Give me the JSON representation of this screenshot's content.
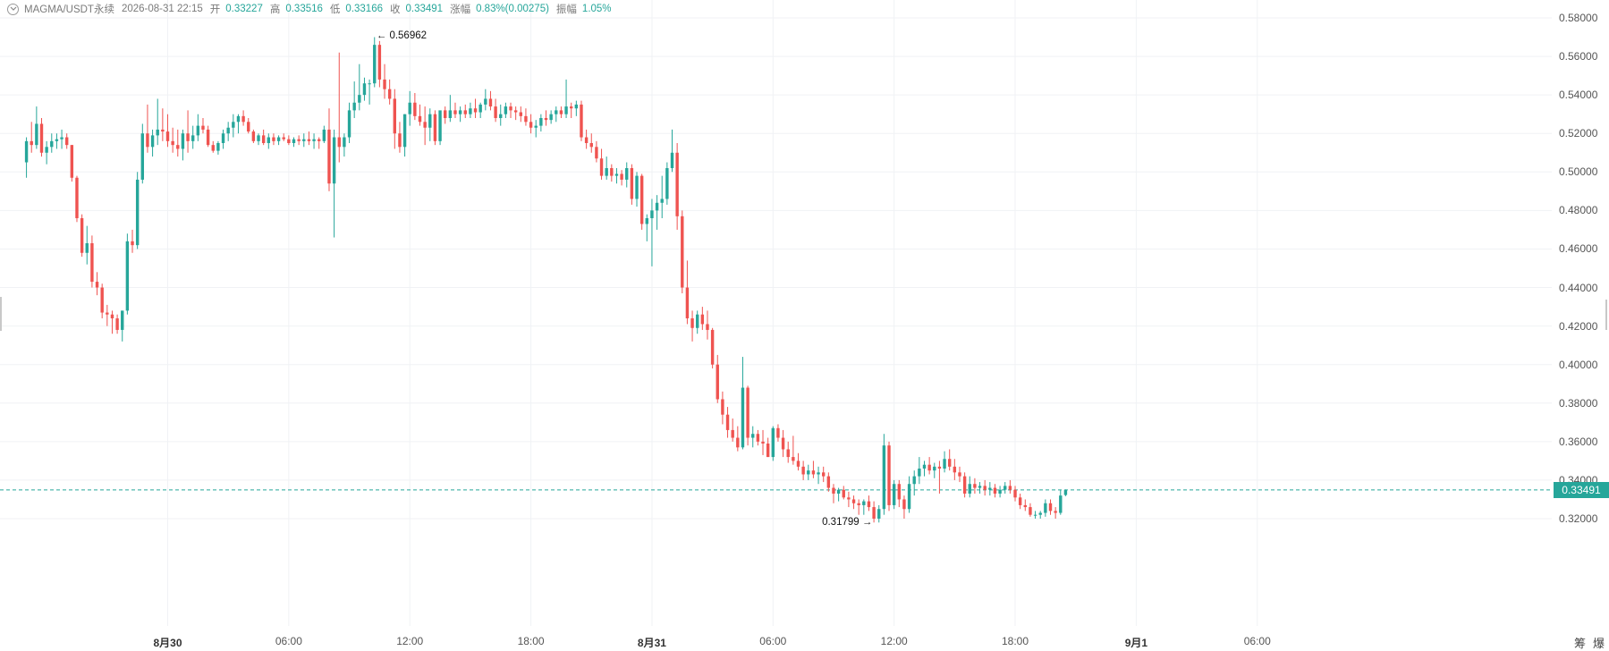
{
  "header": {
    "symbol": "MAGMA/USDT永续",
    "datetime": "2026-08-31 22:15",
    "open_label": "开",
    "open_value": "0.33227",
    "high_label": "高",
    "high_value": "0.33516",
    "low_label": "低",
    "low_value": "0.33166",
    "close_label": "收",
    "close_value": "0.33491",
    "change_label": "涨幅",
    "change_value": "0.83%(0.00275)",
    "amplitude_label": "振幅",
    "amplitude_value": "1.05%"
  },
  "current_price": "0.33491",
  "annotations": {
    "high_marker": "0.56962",
    "low_marker": "0.31799"
  },
  "toolbar": {
    "tool1": "筹",
    "tool2": "爆"
  },
  "colors": {
    "up": "#26a69a",
    "down": "#ef5350",
    "grid": "#f0f2f5",
    "price_line": "#26a69a"
  },
  "chart_data": {
    "type": "candlestick",
    "interval": "15m",
    "y_axis_ticks": [
      "0.58000",
      "0.56000",
      "0.54000",
      "0.52000",
      "0.50000",
      "0.48000",
      "0.46000",
      "0.44000",
      "0.42000",
      "0.40000",
      "0.38000",
      "0.36000",
      "0.34000",
      "0.32000"
    ],
    "ylim": [
      0.3115,
      0.5852
    ],
    "x_axis_ticks": [
      {
        "label": "8月30",
        "bold": true
      },
      {
        "label": "06:00",
        "bold": false
      },
      {
        "label": "12:00",
        "bold": false
      },
      {
        "label": "18:00",
        "bold": false
      },
      {
        "label": "8月31",
        "bold": true
      },
      {
        "label": "06:00",
        "bold": false
      },
      {
        "label": "12:00",
        "bold": false
      },
      {
        "label": "18:00",
        "bold": false
      },
      {
        "label": "9月1",
        "bold": true
      },
      {
        "label": "06:00",
        "bold": false
      }
    ],
    "x_axis_tick_times_hours_from_aug30": [
      0,
      6,
      12,
      18,
      24,
      30,
      36,
      42,
      48,
      54
    ],
    "first_candle_time": "2026-08-29 17:00",
    "candle_interval_minutes": 15,
    "candles": [
      [
        0.505,
        0.518,
        0.497,
        0.516
      ],
      [
        0.516,
        0.526,
        0.51,
        0.514
      ],
      [
        0.514,
        0.534,
        0.512,
        0.525
      ],
      [
        0.525,
        0.528,
        0.508,
        0.51
      ],
      [
        0.51,
        0.516,
        0.504,
        0.513
      ],
      [
        0.513,
        0.52,
        0.51,
        0.516
      ],
      [
        0.516,
        0.52,
        0.512,
        0.517
      ],
      [
        0.517,
        0.522,
        0.512,
        0.518
      ],
      [
        0.518,
        0.52,
        0.512,
        0.514
      ],
      [
        0.514,
        0.514,
        0.495,
        0.497
      ],
      [
        0.497,
        0.498,
        0.474,
        0.476
      ],
      [
        0.476,
        0.478,
        0.456,
        0.458
      ],
      [
        0.458,
        0.472,
        0.452,
        0.463
      ],
      [
        0.463,
        0.467,
        0.44,
        0.443
      ],
      [
        0.443,
        0.448,
        0.436,
        0.44
      ],
      [
        0.44,
        0.442,
        0.424,
        0.427
      ],
      [
        0.427,
        0.431,
        0.42,
        0.426
      ],
      [
        0.426,
        0.428,
        0.416,
        0.424
      ],
      [
        0.424,
        0.426,
        0.416,
        0.418
      ],
      [
        0.418,
        0.428,
        0.412,
        0.428
      ],
      [
        0.428,
        0.468,
        0.426,
        0.464
      ],
      [
        0.464,
        0.47,
        0.458,
        0.462
      ],
      [
        0.462,
        0.5,
        0.46,
        0.496
      ],
      [
        0.496,
        0.525,
        0.494,
        0.52
      ],
      [
        0.52,
        0.535,
        0.51,
        0.513
      ],
      [
        0.513,
        0.522,
        0.508,
        0.519
      ],
      [
        0.519,
        0.538,
        0.514,
        0.522
      ],
      [
        0.522,
        0.533,
        0.516,
        0.521
      ],
      [
        0.521,
        0.53,
        0.513,
        0.516
      ],
      [
        0.516,
        0.523,
        0.51,
        0.514
      ],
      [
        0.514,
        0.522,
        0.508,
        0.512
      ],
      [
        0.512,
        0.522,
        0.506,
        0.52
      ],
      [
        0.52,
        0.532,
        0.51,
        0.516
      ],
      [
        0.516,
        0.524,
        0.512,
        0.519
      ],
      [
        0.519,
        0.53,
        0.516,
        0.524
      ],
      [
        0.524,
        0.528,
        0.52,
        0.522
      ],
      [
        0.522,
        0.524,
        0.513,
        0.514
      ],
      [
        0.514,
        0.516,
        0.51,
        0.511
      ],
      [
        0.511,
        0.516,
        0.509,
        0.515
      ],
      [
        0.515,
        0.522,
        0.512,
        0.52
      ],
      [
        0.52,
        0.526,
        0.516,
        0.523
      ],
      [
        0.523,
        0.53,
        0.518,
        0.526
      ],
      [
        0.526,
        0.53,
        0.52,
        0.529
      ],
      [
        0.529,
        0.532,
        0.524,
        0.526
      ],
      [
        0.526,
        0.528,
        0.52,
        0.521
      ],
      [
        0.521,
        0.522,
        0.515,
        0.516
      ],
      [
        0.516,
        0.52,
        0.514,
        0.519
      ],
      [
        0.519,
        0.522,
        0.514,
        0.515
      ],
      [
        0.515,
        0.52,
        0.512,
        0.518
      ],
      [
        0.518,
        0.52,
        0.514,
        0.516
      ],
      [
        0.516,
        0.519,
        0.514,
        0.518
      ],
      [
        0.518,
        0.52,
        0.516,
        0.517
      ],
      [
        0.517,
        0.519,
        0.514,
        0.515
      ],
      [
        0.515,
        0.518,
        0.513,
        0.517
      ],
      [
        0.517,
        0.519,
        0.514,
        0.516
      ],
      [
        0.516,
        0.52,
        0.513,
        0.517
      ],
      [
        0.517,
        0.521,
        0.514,
        0.516
      ],
      [
        0.516,
        0.52,
        0.512,
        0.517
      ],
      [
        0.517,
        0.518,
        0.512,
        0.516
      ],
      [
        0.516,
        0.524,
        0.515,
        0.522
      ],
      [
        0.522,
        0.533,
        0.49,
        0.494
      ],
      [
        0.494,
        0.522,
        0.466,
        0.518
      ],
      [
        0.518,
        0.562,
        0.505,
        0.513
      ],
      [
        0.513,
        0.52,
        0.508,
        0.518
      ],
      [
        0.518,
        0.536,
        0.515,
        0.532
      ],
      [
        0.532,
        0.547,
        0.528,
        0.536
      ],
      [
        0.536,
        0.556,
        0.532,
        0.54
      ],
      [
        0.54,
        0.549,
        0.537,
        0.546
      ],
      [
        0.546,
        0.548,
        0.535,
        0.546
      ],
      [
        0.546,
        0.57,
        0.544,
        0.566
      ],
      [
        0.566,
        0.568,
        0.544,
        0.548
      ],
      [
        0.548,
        0.556,
        0.538,
        0.543
      ],
      [
        0.543,
        0.548,
        0.535,
        0.538
      ],
      [
        0.538,
        0.543,
        0.512,
        0.52
      ],
      [
        0.52,
        0.526,
        0.51,
        0.513
      ],
      [
        0.513,
        0.53,
        0.508,
        0.53
      ],
      [
        0.53,
        0.542,
        0.524,
        0.536
      ],
      [
        0.536,
        0.541,
        0.527,
        0.529
      ],
      [
        0.529,
        0.535,
        0.524,
        0.526
      ],
      [
        0.526,
        0.534,
        0.514,
        0.523
      ],
      [
        0.523,
        0.533,
        0.516,
        0.53
      ],
      [
        0.53,
        0.532,
        0.514,
        0.516
      ],
      [
        0.516,
        0.53,
        0.514,
        0.532
      ],
      [
        0.532,
        0.534,
        0.525,
        0.528
      ],
      [
        0.528,
        0.54,
        0.526,
        0.532
      ],
      [
        0.532,
        0.536,
        0.528,
        0.53
      ],
      [
        0.53,
        0.534,
        0.526,
        0.532
      ],
      [
        0.532,
        0.535,
        0.528,
        0.53
      ],
      [
        0.53,
        0.536,
        0.528,
        0.533
      ],
      [
        0.533,
        0.538,
        0.528,
        0.531
      ],
      [
        0.531,
        0.536,
        0.528,
        0.535
      ],
      [
        0.535,
        0.543,
        0.532,
        0.538
      ],
      [
        0.538,
        0.542,
        0.532,
        0.534
      ],
      [
        0.534,
        0.538,
        0.526,
        0.528
      ],
      [
        0.528,
        0.535,
        0.524,
        0.53
      ],
      [
        0.53,
        0.536,
        0.528,
        0.534
      ],
      [
        0.534,
        0.536,
        0.528,
        0.532
      ],
      [
        0.532,
        0.534,
        0.527,
        0.531
      ],
      [
        0.531,
        0.534,
        0.526,
        0.529
      ],
      [
        0.529,
        0.533,
        0.524,
        0.526
      ],
      [
        0.526,
        0.53,
        0.52,
        0.523
      ],
      [
        0.523,
        0.527,
        0.518,
        0.524
      ],
      [
        0.524,
        0.53,
        0.521,
        0.528
      ],
      [
        0.528,
        0.532,
        0.524,
        0.527
      ],
      [
        0.527,
        0.532,
        0.525,
        0.53
      ],
      [
        0.53,
        0.534,
        0.526,
        0.532
      ],
      [
        0.532,
        0.534,
        0.528,
        0.53
      ],
      [
        0.53,
        0.548,
        0.528,
        0.534
      ],
      [
        0.534,
        0.536,
        0.528,
        0.533
      ],
      [
        0.533,
        0.537,
        0.529,
        0.535
      ],
      [
        0.535,
        0.537,
        0.516,
        0.518
      ],
      [
        0.518,
        0.522,
        0.512,
        0.515
      ],
      [
        0.515,
        0.52,
        0.51,
        0.513
      ],
      [
        0.513,
        0.516,
        0.505,
        0.507
      ],
      [
        0.507,
        0.512,
        0.496,
        0.498
      ],
      [
        0.498,
        0.508,
        0.496,
        0.502
      ],
      [
        0.502,
        0.504,
        0.495,
        0.498
      ],
      [
        0.498,
        0.502,
        0.494,
        0.499
      ],
      [
        0.499,
        0.501,
        0.493,
        0.496
      ],
      [
        0.496,
        0.505,
        0.492,
        0.502
      ],
      [
        0.502,
        0.504,
        0.483,
        0.486
      ],
      [
        0.486,
        0.5,
        0.482,
        0.498
      ],
      [
        0.498,
        0.499,
        0.47,
        0.473
      ],
      [
        0.473,
        0.478,
        0.464,
        0.476
      ],
      [
        0.476,
        0.486,
        0.451,
        0.48
      ],
      [
        0.48,
        0.488,
        0.47,
        0.484
      ],
      [
        0.484,
        0.498,
        0.476,
        0.486
      ],
      [
        0.486,
        0.505,
        0.483,
        0.502
      ],
      [
        0.502,
        0.522,
        0.5,
        0.51
      ],
      [
        0.51,
        0.515,
        0.47,
        0.477
      ],
      [
        0.477,
        0.48,
        0.437,
        0.44
      ],
      [
        0.44,
        0.454,
        0.421,
        0.424
      ],
      [
        0.424,
        0.428,
        0.412,
        0.419
      ],
      [
        0.419,
        0.428,
        0.416,
        0.426
      ],
      [
        0.426,
        0.43,
        0.418,
        0.421
      ],
      [
        0.421,
        0.428,
        0.413,
        0.418
      ],
      [
        0.418,
        0.419,
        0.398,
        0.4
      ],
      [
        0.4,
        0.405,
        0.38,
        0.382
      ],
      [
        0.382,
        0.386,
        0.369,
        0.374
      ],
      [
        0.374,
        0.378,
        0.362,
        0.366
      ],
      [
        0.366,
        0.372,
        0.36,
        0.362
      ],
      [
        0.362,
        0.368,
        0.355,
        0.357
      ],
      [
        0.357,
        0.404,
        0.356,
        0.388
      ],
      [
        0.388,
        0.389,
        0.358,
        0.362
      ],
      [
        0.362,
        0.368,
        0.357,
        0.364
      ],
      [
        0.364,
        0.366,
        0.358,
        0.36
      ],
      [
        0.36,
        0.366,
        0.353,
        0.359
      ],
      [
        0.359,
        0.362,
        0.352,
        0.352
      ],
      [
        0.352,
        0.368,
        0.35,
        0.367
      ],
      [
        0.367,
        0.369,
        0.36,
        0.362
      ],
      [
        0.362,
        0.366,
        0.352,
        0.356
      ],
      [
        0.356,
        0.36,
        0.349,
        0.352
      ],
      [
        0.352,
        0.363,
        0.348,
        0.35
      ],
      [
        0.35,
        0.354,
        0.345,
        0.347
      ],
      [
        0.347,
        0.35,
        0.34,
        0.343
      ],
      [
        0.343,
        0.348,
        0.34,
        0.345
      ],
      [
        0.345,
        0.35,
        0.341,
        0.343
      ],
      [
        0.343,
        0.347,
        0.338,
        0.344
      ],
      [
        0.344,
        0.347,
        0.339,
        0.342
      ],
      [
        0.342,
        0.344,
        0.334,
        0.336
      ],
      [
        0.336,
        0.338,
        0.328,
        0.333
      ],
      [
        0.333,
        0.336,
        0.329,
        0.335
      ],
      [
        0.335,
        0.337,
        0.33,
        0.331
      ],
      [
        0.331,
        0.334,
        0.326,
        0.33
      ],
      [
        0.33,
        0.332,
        0.325,
        0.328
      ],
      [
        0.328,
        0.33,
        0.322,
        0.327
      ],
      [
        0.327,
        0.33,
        0.322,
        0.329
      ],
      [
        0.329,
        0.332,
        0.324,
        0.326
      ],
      [
        0.326,
        0.329,
        0.318,
        0.32
      ],
      [
        0.32,
        0.327,
        0.318,
        0.325
      ],
      [
        0.325,
        0.364,
        0.322,
        0.358
      ],
      [
        0.358,
        0.36,
        0.324,
        0.327
      ],
      [
        0.327,
        0.34,
        0.325,
        0.338
      ],
      [
        0.338,
        0.34,
        0.326,
        0.33
      ],
      [
        0.33,
        0.332,
        0.32,
        0.325
      ],
      [
        0.325,
        0.342,
        0.323,
        0.338
      ],
      [
        0.338,
        0.345,
        0.332,
        0.342
      ],
      [
        0.342,
        0.352,
        0.338,
        0.346
      ],
      [
        0.346,
        0.35,
        0.342,
        0.348
      ],
      [
        0.348,
        0.352,
        0.343,
        0.345
      ],
      [
        0.345,
        0.349,
        0.341,
        0.347
      ],
      [
        0.347,
        0.35,
        0.333,
        0.346
      ],
      [
        0.346,
        0.355,
        0.344,
        0.351
      ],
      [
        0.351,
        0.356,
        0.345,
        0.347
      ],
      [
        0.347,
        0.351,
        0.34,
        0.344
      ],
      [
        0.344,
        0.347,
        0.339,
        0.342
      ],
      [
        0.342,
        0.344,
        0.331,
        0.333
      ],
      [
        0.333,
        0.342,
        0.331,
        0.338
      ],
      [
        0.338,
        0.341,
        0.333,
        0.336
      ],
      [
        0.336,
        0.339,
        0.333,
        0.337
      ],
      [
        0.337,
        0.34,
        0.332,
        0.335
      ],
      [
        0.335,
        0.339,
        0.332,
        0.336
      ],
      [
        0.336,
        0.338,
        0.331,
        0.333
      ],
      [
        0.333,
        0.337,
        0.331,
        0.335
      ],
      [
        0.335,
        0.339,
        0.333,
        0.337
      ],
      [
        0.337,
        0.34,
        0.333,
        0.335
      ],
      [
        0.335,
        0.337,
        0.329,
        0.331
      ],
      [
        0.331,
        0.333,
        0.325,
        0.327
      ],
      [
        0.327,
        0.33,
        0.324,
        0.326
      ],
      [
        0.326,
        0.328,
        0.321,
        0.322
      ],
      [
        0.322,
        0.324,
        0.32,
        0.322
      ],
      [
        0.322,
        0.324,
        0.32,
        0.323
      ],
      [
        0.323,
        0.33,
        0.321,
        0.328
      ],
      [
        0.328,
        0.33,
        0.322,
        0.324
      ],
      [
        0.324,
        0.326,
        0.32,
        0.323
      ],
      [
        0.323,
        0.335,
        0.322,
        0.332
      ],
      [
        0.33227,
        0.33516,
        0.33166,
        0.33491
      ]
    ]
  }
}
